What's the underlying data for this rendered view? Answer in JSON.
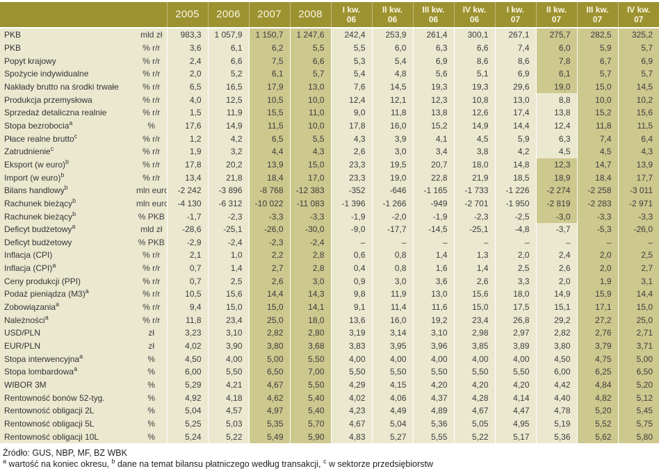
{
  "source_line": "Źródło: GUS, NBP, MF, BZ WBK",
  "footnotes": [
    {
      "sup": "a",
      "text": " wartość na koniec okresu, "
    },
    {
      "sup": "b",
      "text": " dane na temat bilansu płatniczego według transakcji, "
    },
    {
      "sup": "c",
      "text": " w sektorze przedsiębiorstw"
    }
  ],
  "colors": {
    "header_bg": "#9C9230",
    "cell_bg": "#EBE8D0",
    "forecast_cell_bg": "#CDC88E",
    "separator": "#FFFFFF",
    "header_text": "#FBF8E6",
    "body_text": "#3C3C3C"
  },
  "chart_data": {
    "type": "table",
    "columns": [
      "2005",
      "2006",
      "2007",
      "2008",
      "I kw.\n06",
      "II kw.\n06",
      "III kw.\n06",
      "IV kw.\n06",
      "I kw.\n07",
      "II kw.\n07",
      "III kw.\n07",
      "IV kw.\n07"
    ],
    "rows": [
      {
        "label": "PKB",
        "sup": "",
        "unit": "mld zł",
        "values": [
          "983,3",
          "1 057,9",
          "1 150,7",
          "1 247,6",
          "242,4",
          "253,9",
          "261,4",
          "300,1",
          "267,1",
          "275,7",
          "282,5",
          "325,2"
        ],
        "shaded": [
          2,
          3,
          9,
          10,
          11
        ]
      },
      {
        "label": "PKB",
        "sup": "",
        "unit": "% r/r",
        "values": [
          "3,6",
          "6,1",
          "6,2",
          "5,5",
          "5,5",
          "6,0",
          "6,3",
          "6,6",
          "7,4",
          "6,0",
          "5,9",
          "5,7"
        ],
        "shaded": [
          2,
          3,
          9,
          10,
          11
        ]
      },
      {
        "label": "Popyt krajowy",
        "sup": "",
        "unit": "% r/r",
        "values": [
          "2,4",
          "6,6",
          "7,5",
          "6,6",
          "5,3",
          "5,4",
          "6,9",
          "8,6",
          "8,6",
          "7,8",
          "6,7",
          "6,9"
        ],
        "shaded": [
          2,
          3,
          9,
          10,
          11
        ]
      },
      {
        "label": "Spożycie indywidualne",
        "sup": "",
        "unit": "% r/r",
        "values": [
          "2,0",
          "5,2",
          "6,1",
          "5,7",
          "5,4",
          "4,8",
          "5,6",
          "5,1",
          "6,9",
          "6,1",
          "5,7",
          "5,7"
        ],
        "shaded": [
          2,
          3,
          9,
          10,
          11
        ]
      },
      {
        "label": "Nakłady brutto na środki trwałe",
        "sup": "",
        "unit": "% r/r",
        "values": [
          "6,5",
          "16,5",
          "17,9",
          "13,0",
          "7,6",
          "14,5",
          "19,3",
          "19,3",
          "29,6",
          "19,0",
          "15,0",
          "14,5"
        ],
        "shaded": [
          2,
          3,
          9,
          10,
          11
        ]
      },
      {
        "label": "Produkcja przemysłowa",
        "sup": "",
        "unit": "% r/r",
        "values": [
          "4,0",
          "12,5",
          "10,5",
          "10,0",
          "12,4",
          "12,1",
          "12,3",
          "10,8",
          "13,0",
          "8,8",
          "10,0",
          "10,2"
        ],
        "shaded": [
          2,
          3,
          10,
          11
        ]
      },
      {
        "label": "Sprzedaż detaliczna realnie",
        "sup": "",
        "unit": "% r/r",
        "values": [
          "1,5",
          "11,9",
          "15,5",
          "11,0",
          "9,0",
          "11,8",
          "13,8",
          "12,6",
          "17,4",
          "13,8",
          "15,2",
          "15,6"
        ],
        "shaded": [
          2,
          3,
          10,
          11
        ]
      },
      {
        "label": "Stopa bezrobocia",
        "sup": "a",
        "unit": "%",
        "values": [
          "17,6",
          "14,9",
          "11,5",
          "10,0",
          "17,8",
          "16,0",
          "15,2",
          "14,9",
          "14,4",
          "12,4",
          "11,8",
          "11,5"
        ],
        "shaded": [
          2,
          3,
          10,
          11
        ]
      },
      {
        "label": "Płace realne brutto",
        "sup": "c",
        "unit": "% r/r",
        "values": [
          "1,2",
          "4,2",
          "6,5",
          "5,5",
          "4,3",
          "3,9",
          "4,1",
          "4,5",
          "5,9",
          "6,3",
          "7,4",
          "6,4"
        ],
        "shaded": [
          2,
          3,
          10,
          11
        ]
      },
      {
        "label": "Zatrudnienie",
        "sup": "c",
        "unit": "% r/r",
        "values": [
          "1,9",
          "3,2",
          "4,4",
          "4,3",
          "2,6",
          "3,0",
          "3,4",
          "3,8",
          "4,2",
          "4,5",
          "4,5",
          "4,3"
        ],
        "shaded": [
          2,
          3,
          10,
          11
        ]
      },
      {
        "label": "Eksport (w euro)",
        "sup": "b",
        "unit": "% r/r",
        "values": [
          "17,8",
          "20,2",
          "13,9",
          "15,0",
          "23,3",
          "19,5",
          "20,7",
          "18,0",
          "14,8",
          "12,3",
          "14,7",
          "13,9"
        ],
        "shaded": [
          2,
          3,
          9,
          10,
          11
        ]
      },
      {
        "label": "Import (w euro)",
        "sup": "b",
        "unit": "% r/r",
        "values": [
          "13,4",
          "21,8",
          "18,4",
          "17,0",
          "23,3",
          "19,0",
          "22,8",
          "21,9",
          "18,5",
          "18,9",
          "18,4",
          "17,7"
        ],
        "shaded": [
          2,
          3,
          9,
          10,
          11
        ]
      },
      {
        "label": "Bilans handlowy",
        "sup": "b",
        "unit": "mln euro",
        "values": [
          "-2 242",
          "-3 896",
          "-8 768",
          "-12 383",
          "-352",
          "-646",
          "-1 165",
          "-1 733",
          "-1 226",
          "-2 274",
          "-2 258",
          "-3 011"
        ],
        "shaded": [
          2,
          3,
          9,
          10,
          11
        ]
      },
      {
        "label": "Rachunek bieżący",
        "sup": "b",
        "unit": "mln euro",
        "values": [
          "-4 130",
          "-6 312",
          "-10 022",
          "-11 083",
          "-1 396",
          "-1 266",
          "-949",
          "-2 701",
          "-1 950",
          "-2 819",
          "-2 283",
          "-2 971"
        ],
        "shaded": [
          2,
          3,
          9,
          10,
          11
        ]
      },
      {
        "label": "Rachunek bieżący",
        "sup": "b",
        "unit": "% PKB",
        "values": [
          "-1,7",
          "-2,3",
          "-3,3",
          "-3,3",
          "-1,9",
          "-2,0",
          "-1,9",
          "-2,3",
          "-2,5",
          "-3,0",
          "-3,3",
          "-3,3"
        ],
        "shaded": [
          2,
          3,
          9,
          10,
          11
        ]
      },
      {
        "label": "Deficyt budżetowy",
        "sup": "a",
        "unit": "mld zł",
        "values": [
          "-28,6",
          "-25,1",
          "-26,0",
          "-30,0",
          "-9,0",
          "-17,7",
          "-14,5",
          "-25,1",
          "-4,8",
          "-3,7",
          "-5,3",
          "-26,0"
        ],
        "shaded": [
          2,
          3,
          10,
          11
        ]
      },
      {
        "label": "Deficyt budżetowy",
        "sup": "",
        "unit": "% PKB",
        "values": [
          "-2,9",
          "-2,4",
          "-2,3",
          "-2,4",
          "–",
          "–",
          "–",
          "–",
          "–",
          "–",
          "–",
          "–"
        ],
        "shaded": [
          2,
          3,
          10,
          11
        ]
      },
      {
        "label": "Inflacja (CPI)",
        "sup": "",
        "unit": "% r/r",
        "values": [
          "2,1",
          "1,0",
          "2,2",
          "2,8",
          "0,6",
          "0,8",
          "1,4",
          "1,3",
          "2,0",
          "2,4",
          "2,0",
          "2,5"
        ],
        "shaded": [
          2,
          3,
          10,
          11
        ]
      },
      {
        "label": "Inflacja (CPI)",
        "sup": "a",
        "unit": "% r/r",
        "values": [
          "0,7",
          "1,4",
          "2,7",
          "2,8",
          "0,4",
          "0,8",
          "1,6",
          "1,4",
          "2,5",
          "2,6",
          "2,0",
          "2,7"
        ],
        "shaded": [
          2,
          3,
          10,
          11
        ]
      },
      {
        "label": "Ceny produkcji (PPI)",
        "sup": "",
        "unit": "% r/r",
        "values": [
          "0,7",
          "2,5",
          "2,6",
          "3,0",
          "0,9",
          "3,0",
          "3,6",
          "2,6",
          "3,3",
          "2,0",
          "1,9",
          "3,1"
        ],
        "shaded": [
          2,
          3,
          10,
          11
        ]
      },
      {
        "label": "Podaż pieniądza (M3)",
        "sup": "a",
        "unit": "% r/r",
        "values": [
          "10,5",
          "15,6",
          "14,4",
          "14,3",
          "9,8",
          "11,9",
          "13,0",
          "15,6",
          "18,0",
          "14,9",
          "15,9",
          "14,4"
        ],
        "shaded": [
          2,
          3,
          10,
          11
        ]
      },
      {
        "label": "Zobowiązania",
        "sup": "a",
        "unit": "% r/r",
        "values": [
          "9,4",
          "15,0",
          "15,0",
          "14,1",
          "9,1",
          "11,4",
          "11,6",
          "15,0",
          "17,5",
          "15,1",
          "17,1",
          "15,0"
        ],
        "shaded": [
          2,
          3,
          10,
          11
        ]
      },
      {
        "label": "Należności",
        "sup": "a",
        "unit": "% r/r",
        "values": [
          "11,8",
          "23,4",
          "25,0",
          "18,0",
          "13,6",
          "16,0",
          "19,2",
          "23,4",
          "26,8",
          "29,2",
          "27,2",
          "25,0"
        ],
        "shaded": [
          2,
          3,
          10,
          11
        ]
      },
      {
        "label": "USD/PLN",
        "sup": "",
        "unit": "zł",
        "values": [
          "3,23",
          "3,10",
          "2,82",
          "2,80",
          "3,19",
          "3,14",
          "3,10",
          "2,98",
          "2,97",
          "2,82",
          "2,76",
          "2,71"
        ],
        "shaded": [
          2,
          3,
          10,
          11
        ]
      },
      {
        "label": "EUR/PLN",
        "sup": "",
        "unit": "zł",
        "values": [
          "4,02",
          "3,90",
          "3,80",
          "3,68",
          "3,83",
          "3,95",
          "3,96",
          "3,85",
          "3,89",
          "3,80",
          "3,79",
          "3,71"
        ],
        "shaded": [
          2,
          3,
          10,
          11
        ]
      },
      {
        "label": "Stopa interwencyjna",
        "sup": "a",
        "unit": "%",
        "values": [
          "4,50",
          "4,00",
          "5,00",
          "5,50",
          "4,00",
          "4,00",
          "4,00",
          "4,00",
          "4,00",
          "4,50",
          "4,75",
          "5,00"
        ],
        "shaded": [
          2,
          3,
          10,
          11
        ]
      },
      {
        "label": "Stopa lombardowa",
        "sup": "a",
        "unit": "%",
        "values": [
          "6,00",
          "5,50",
          "6,50",
          "7,00",
          "5,50",
          "5,50",
          "5,50",
          "5,50",
          "5,50",
          "6,00",
          "6,25",
          "6,50"
        ],
        "shaded": [
          2,
          3,
          10,
          11
        ]
      },
      {
        "label": "WIBOR 3M",
        "sup": "",
        "unit": "%",
        "values": [
          "5,29",
          "4,21",
          "4,67",
          "5,50",
          "4,29",
          "4,15",
          "4,20",
          "4,20",
          "4,20",
          "4,42",
          "4,84",
          "5,20"
        ],
        "shaded": [
          2,
          3,
          10,
          11
        ]
      },
      {
        "label": "Rentowność bonów 52-tyg.",
        "sup": "",
        "unit": "%",
        "values": [
          "4,92",
          "4,18",
          "4,62",
          "5,40",
          "4,02",
          "4,06",
          "4,37",
          "4,28",
          "4,14",
          "4,40",
          "4,82",
          "5,12"
        ],
        "shaded": [
          2,
          3,
          10,
          11
        ]
      },
      {
        "label": "Rentowność obligacji 2L",
        "sup": "",
        "unit": "%",
        "values": [
          "5,04",
          "4,57",
          "4,97",
          "5,40",
          "4,23",
          "4,49",
          "4,89",
          "4,67",
          "4,47",
          "4,78",
          "5,20",
          "5,45"
        ],
        "shaded": [
          2,
          3,
          10,
          11
        ]
      },
      {
        "label": "Rentowność obligacji 5L",
        "sup": "",
        "unit": "%",
        "values": [
          "5,25",
          "5,03",
          "5,35",
          "5,70",
          "4,67",
          "5,04",
          "5,36",
          "5,05",
          "4,95",
          "5,19",
          "5,52",
          "5,75"
        ],
        "shaded": [
          2,
          3,
          10,
          11
        ]
      },
      {
        "label": "Rentowność obligacji 10L",
        "sup": "",
        "unit": "%",
        "values": [
          "5,24",
          "5,22",
          "5,49",
          "5,90",
          "4,83",
          "5,27",
          "5,55",
          "5,22",
          "5,17",
          "5,36",
          "5,62",
          "5,80"
        ],
        "shaded": [
          2,
          3,
          10,
          11
        ]
      }
    ]
  }
}
